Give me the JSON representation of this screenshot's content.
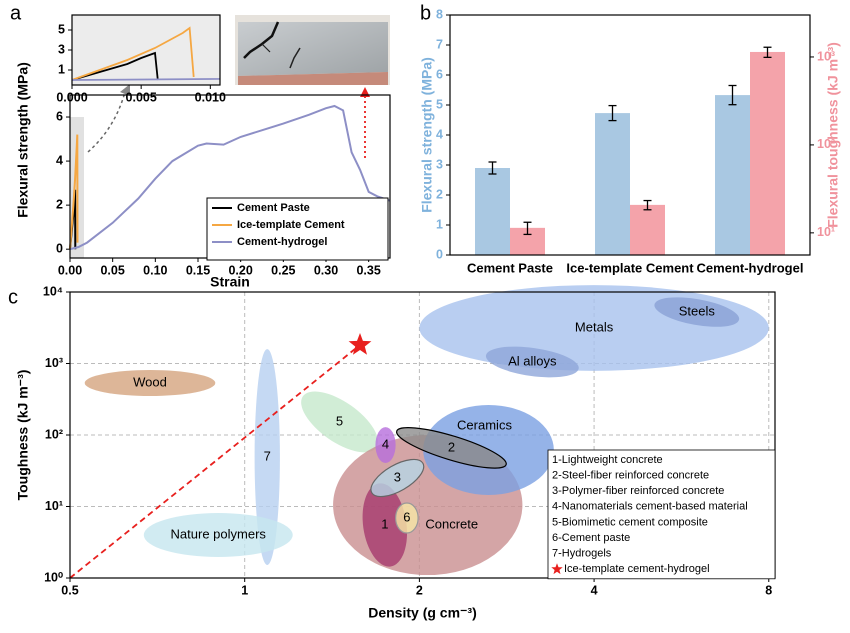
{
  "chart_data": [
    {
      "type": "line",
      "panel": "a",
      "xlabel": "Strain",
      "ylabel": "Flexural strength (MPa)",
      "xlim": [
        0,
        0.375
      ],
      "ylim": [
        -0.4,
        7
      ],
      "xticks": [
        {
          "value": 0,
          "label": "0.00"
        },
        0.05,
        {
          "value": 0.1,
          "label": "0.10"
        },
        0.15,
        {
          "value": 0.2,
          "label": "0.20"
        },
        0.25,
        {
          "value": 0.3,
          "label": "0.30"
        },
        0.35
      ],
      "yticks": [
        0,
        2,
        4,
        6
      ],
      "legend": "lower right",
      "series": [
        {
          "name": "Cement Paste",
          "color": "#000000",
          "x": [
            0,
            0.002,
            0.004,
            0.005,
            0.0058,
            0.006,
            0.0062
          ],
          "values": [
            0,
            0.8,
            1.6,
            2.2,
            2.6,
            2.7,
            0
          ]
        },
        {
          "name": "Ice-template Cement",
          "color": "#f5a742",
          "x": [
            0,
            0.002,
            0.004,
            0.006,
            0.008,
            0.0085,
            0.0088
          ],
          "values": [
            0,
            1,
            2,
            3.2,
            4.7,
            5.2,
            0.3
          ]
        },
        {
          "name": "Cement-hydrogel",
          "color": "#8d8fc6",
          "x": [
            0,
            0.01,
            0.02,
            0.05,
            0.08,
            0.1,
            0.12,
            0.15,
            0.16,
            0.18,
            0.2,
            0.25,
            0.28,
            0.3,
            0.31,
            0.32,
            0.33,
            0.34,
            0.35,
            0.36,
            0.375
          ],
          "values": [
            0,
            0.1,
            0.3,
            1.2,
            2.3,
            3.2,
            4.0,
            4.7,
            4.8,
            4.75,
            5.1,
            5.7,
            6.1,
            6.4,
            6.5,
            6.3,
            4.4,
            3.6,
            2.6,
            2.4,
            2.2
          ]
        }
      ],
      "inset": {
        "xlim": [
          0,
          0.0107
        ],
        "ylim": [
          -0.5,
          6.5
        ],
        "xticks": [
          {
            "value": 0,
            "label": "0.000"
          },
          0.005,
          {
            "value": 0.01,
            "label": "0.010"
          }
        ],
        "yticks": [
          1,
          3,
          5
        ]
      }
    },
    {
      "type": "bar",
      "panel": "b",
      "categories": [
        "Cement Paste",
        "Ice-template Cement",
        "Cement-hydrogel"
      ],
      "ylabel": "Flexural strength (MPa)",
      "y2label": "Flexural toughness (kJ m⁻³)",
      "ylim": [
        0,
        8
      ],
      "yticks": [
        0,
        1,
        2,
        3,
        4,
        5,
        6,
        7,
        8
      ],
      "y2lim": [
        5.6,
        3000
      ],
      "y2log": true,
      "y2ticks": [
        {
          "value": 10,
          "label": "10¹"
        },
        {
          "value": 100,
          "label": "10²"
        },
        {
          "value": 1000,
          "label": "10³"
        }
      ],
      "series": [
        {
          "color": "#a9c8e2",
          "values": [
            2.9,
            4.73,
            5.33
          ],
          "errors": [
            0.2,
            0.25,
            0.32
          ]
        },
        {
          "color": "#f4a3aa",
          "axis": "y2",
          "values": [
            11.4,
            20.8,
            1140
          ],
          "errors": [
            1.8,
            2.5,
            150
          ]
        }
      ]
    },
    {
      "type": "ellipse",
      "panel": "c",
      "xlabel": "Density (g cm⁻³)",
      "ylabel": "Toughness (kJ m⁻³)",
      "xlog": true,
      "ylog": true,
      "grid": true,
      "xlim": [
        0.5,
        8.2
      ],
      "ylim": [
        1,
        10000
      ],
      "xticks": [
        0.5,
        1,
        2,
        4,
        8
      ],
      "yticks": [
        {
          "value": 1,
          "label": "10⁰"
        },
        {
          "value": 10,
          "label": "10¹"
        },
        {
          "value": 100,
          "label": "10²"
        },
        {
          "value": 1000,
          "label": "10³"
        },
        {
          "value": 10000,
          "label": "10⁴"
        }
      ],
      "regions": [
        {
          "label": "Metals",
          "x": [
            2,
            8
          ],
          "y": [
            790,
            12500
          ],
          "color": "#a8c2ee"
        },
        {
          "label": "Steels",
          "x": [
            5.07,
            7.13
          ],
          "y": [
            3460,
            7940
          ],
          "color": "#8aa1d6",
          "angle": -10
        },
        {
          "label": "Al alloys",
          "x": [
            2.6,
            3.77
          ],
          "y": [
            668,
            1650
          ],
          "color": "#8ea6da",
          "angle": -8
        },
        {
          "label": "Wood",
          "x": [
            0.53,
            0.89
          ],
          "y": [
            351,
            811
          ],
          "color": "#d4a47e"
        },
        {
          "label": "7",
          "x": [
            1.04,
            1.15
          ],
          "y": [
            1.52,
            1590
          ],
          "color": "#b7cff0"
        },
        {
          "label": "Nature polymers",
          "x": [
            0.67,
            1.21
          ],
          "y": [
            1.97,
            8.1
          ],
          "color": "#c5e6ef"
        },
        {
          "label": "5",
          "x": [
            1.22,
            1.74
          ],
          "y": [
            80,
            290
          ],
          "color": "#c6e8cc",
          "angle": -35
        },
        {
          "label": "Concrete",
          "x": [
            1.42,
            3.01
          ],
          "y": [
            1.1,
            100
          ],
          "color": "#c98e90"
        },
        {
          "label": "Ceramics",
          "x": [
            2.03,
            3.41
          ],
          "y": [
            14.5,
            263
          ],
          "color": "#7ba0e2"
        },
        {
          "label": "2",
          "x": [
            1.81,
            2.85
          ],
          "y": [
            45,
            97
          ],
          "color": "#8c8c8c",
          "edge": "#000000",
          "angle": -17
        },
        {
          "label": "1",
          "x": [
            1.6,
            1.9
          ],
          "y": [
            1.43,
            21.3
          ],
          "color": "#a53a6e",
          "angle": 8
        },
        {
          "label": "3",
          "x": [
            1.63,
            2.06
          ],
          "y": [
            16.5,
            38
          ],
          "color": "#b5d6e6",
          "edge": "#666666",
          "angle": 30
        },
        {
          "label": "4",
          "x": [
            1.68,
            1.82
          ],
          "y": [
            40.6,
            129
          ],
          "color": "#b76edc"
        },
        {
          "label": "6",
          "x": [
            1.82,
            1.99
          ],
          "y": [
            4.26,
            11.2
          ],
          "color": "#f6e7a6",
          "edge": "#999999"
        }
      ],
      "legend": [
        "1-Lightweight concrete",
        "2-Steel-fiber reinforced concrete",
        "3-Polymer-fiber reinforced concrete",
        "4-Nanomaterials cement-based material",
        "5-Biomimetic cement composite",
        "6-Cement paste",
        "7-Hydrogels"
      ],
      "point": {
        "name": "Ice-template cement-hydrogel",
        "x": 1.58,
        "y": 1815,
        "color": "#e8201e"
      }
    }
  ]
}
